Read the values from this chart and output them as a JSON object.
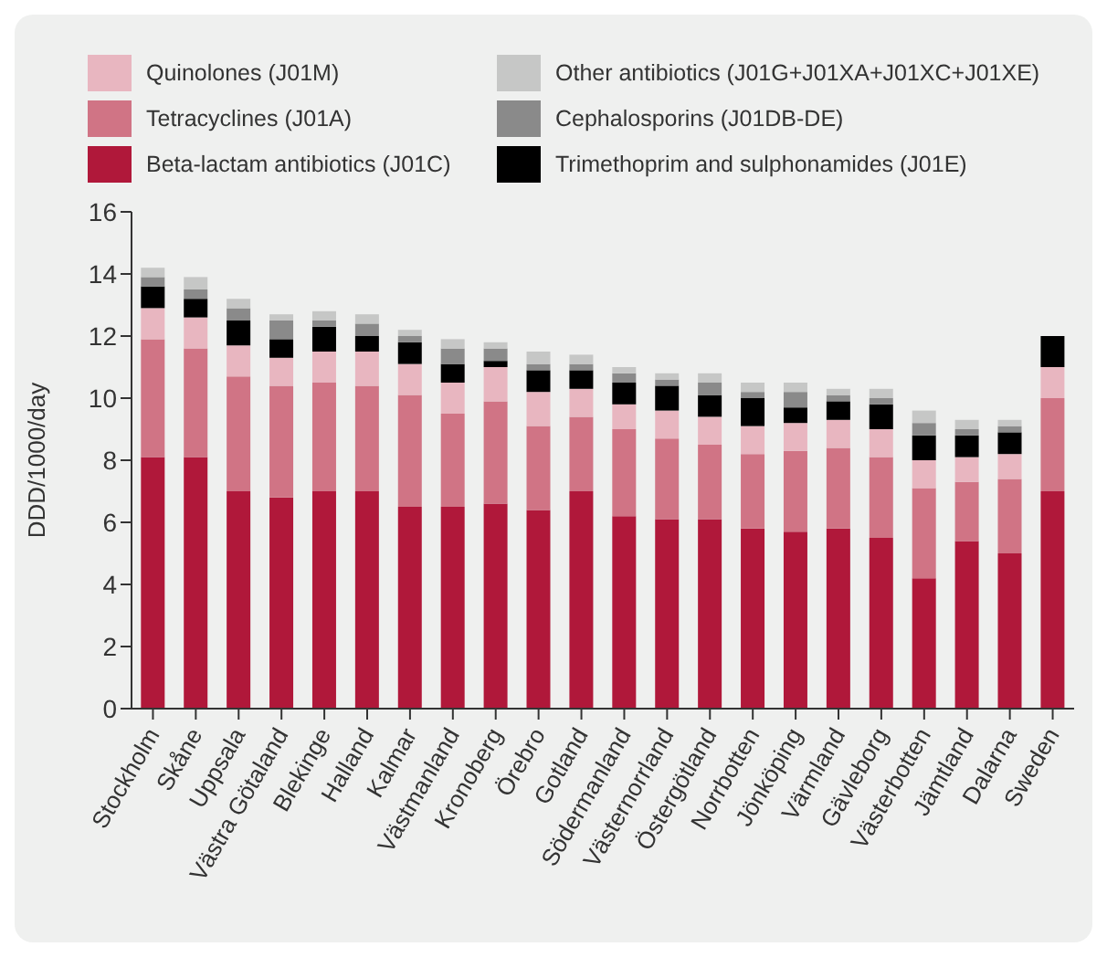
{
  "chart_data": {
    "type": "bar",
    "stacked": true,
    "ylabel": "DDD/1000/day",
    "legend": "top",
    "ylim": [
      0,
      16
    ],
    "yticks": [
      0,
      2,
      4,
      6,
      8,
      10,
      12,
      14,
      16
    ],
    "grid": false,
    "categories": [
      "Stockholm",
      "Skåne",
      "Uppsala",
      "Västra Götaland",
      "Blekinge",
      "Halland",
      "Kalmar",
      "Västmanland",
      "Kronoberg",
      "Örebro",
      "Gotland",
      "Södermanland",
      "Västernorrland",
      "Östergötland",
      "Norrbotten",
      "Jönköping",
      "Värmland",
      "Gävleborg",
      "Västerbotten",
      "Jämtland",
      "Dalarna",
      "Sweden"
    ],
    "series": [
      {
        "name": "Beta-lactam antibiotics (J01C)",
        "color": "#b0183a",
        "values": [
          8.1,
          8.1,
          7.0,
          6.8,
          7.0,
          7.0,
          6.5,
          6.5,
          6.6,
          6.4,
          7.0,
          6.2,
          6.1,
          6.1,
          5.8,
          5.7,
          5.8,
          5.5,
          4.2,
          5.4,
          5.0,
          7.0
        ]
      },
      {
        "name": "Tetracyclines (J01A)",
        "color": "#d07485",
        "values": [
          3.8,
          3.5,
          3.7,
          3.6,
          3.5,
          3.4,
          3.6,
          3.0,
          3.3,
          2.7,
          2.4,
          2.8,
          2.6,
          2.4,
          2.4,
          2.6,
          2.6,
          2.6,
          2.9,
          1.9,
          2.4,
          3.0
        ]
      },
      {
        "name": "Quinolones (J01M)",
        "color": "#e8b6c0",
        "values": [
          1.0,
          1.0,
          1.0,
          0.9,
          1.0,
          1.1,
          1.0,
          1.0,
          1.1,
          1.1,
          0.9,
          0.8,
          0.9,
          0.9,
          0.9,
          0.9,
          0.9,
          0.9,
          0.9,
          0.8,
          0.8,
          1.0
        ]
      },
      {
        "name": "Trimethoprim and sulphonamides (J01E)",
        "color": "#000000",
        "values": [
          0.7,
          0.6,
          0.8,
          0.6,
          0.8,
          0.5,
          0.7,
          0.6,
          0.2,
          0.7,
          0.6,
          0.7,
          0.8,
          0.7,
          0.9,
          0.5,
          0.6,
          0.8,
          0.8,
          0.7,
          0.7,
          1.0
        ]
      },
      {
        "name": "Cephalosporins (J01DB-DE)",
        "color": "#8a8a8a",
        "values": [
          0.3,
          0.3,
          0.4,
          0.6,
          0.2,
          0.4,
          0.2,
          0.5,
          0.4,
          0.2,
          0.2,
          0.3,
          0.2,
          0.4,
          0.2,
          0.5,
          0.2,
          0.2,
          0.4,
          0.2,
          0.2,
          null
        ]
      },
      {
        "name": "Other antibiotics (J01G+J01XA+J01XC+J01XE)",
        "color": "#c6c7c6",
        "values": [
          0.3,
          0.4,
          0.3,
          0.2,
          0.3,
          0.3,
          0.2,
          0.3,
          0.2,
          0.4,
          0.3,
          0.2,
          0.2,
          0.3,
          0.3,
          0.3,
          0.2,
          0.3,
          0.4,
          0.3,
          0.2,
          null
        ]
      }
    ]
  }
}
